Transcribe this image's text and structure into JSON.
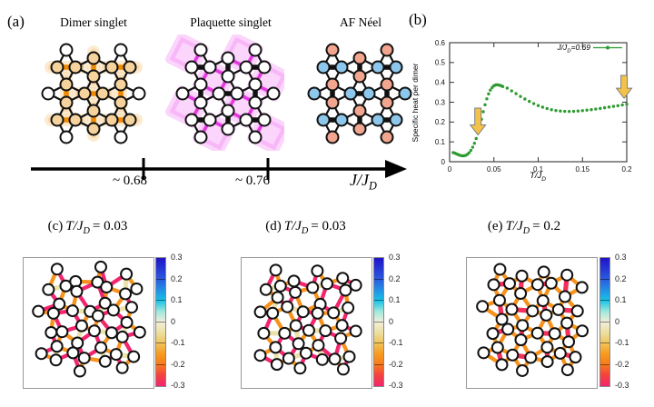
{
  "panel_a": {
    "label": "(a)",
    "phases": [
      {
        "name": "Dimer singlet"
      },
      {
        "name": "Plaquette singlet"
      },
      {
        "name": "AF Néel"
      }
    ],
    "axis": {
      "tick_labels": [
        "~ 0.68",
        "~ 0.76"
      ],
      "label_main": "J/J",
      "label_sub": "D"
    }
  },
  "panel_b": {
    "label": "(b)"
  },
  "chart_data": {
    "type": "scatter",
    "title": "",
    "ylabel": "Specific heat per dimer",
    "xlabel_main": "T/J",
    "xlabel_sub": "D",
    "xlim": [
      0,
      0.2
    ],
    "ylim": [
      0,
      0.6
    ],
    "xtick_labels": [
      "0",
      "0.05",
      "0.1",
      "0.15",
      "0.2"
    ],
    "ytick_labels": [
      "0",
      "0.1",
      "0.2",
      "0.3",
      "0.4",
      "0.5",
      "0.6"
    ],
    "grid": false,
    "legend": {
      "position": "top-right",
      "label_main": "J/J",
      "label_sub": "D",
      "label_eq": "=0.69"
    },
    "series_color": "#2e9b30",
    "x": [
      0.004,
      0.006,
      0.008,
      0.01,
      0.012,
      0.014,
      0.016,
      0.018,
      0.02,
      0.022,
      0.024,
      0.026,
      0.028,
      0.03,
      0.032,
      0.034,
      0.036,
      0.038,
      0.04,
      0.042,
      0.044,
      0.046,
      0.048,
      0.05,
      0.052,
      0.054,
      0.056,
      0.058,
      0.06,
      0.065,
      0.07,
      0.075,
      0.08,
      0.085,
      0.09,
      0.095,
      0.1,
      0.105,
      0.11,
      0.115,
      0.12,
      0.125,
      0.13,
      0.135,
      0.14,
      0.145,
      0.15,
      0.155,
      0.16,
      0.165,
      0.17,
      0.175,
      0.18,
      0.185,
      0.19,
      0.195,
      0.2
    ],
    "y": [
      0.046,
      0.043,
      0.039,
      0.035,
      0.032,
      0.03,
      0.03,
      0.032,
      0.037,
      0.045,
      0.057,
      0.073,
      0.093,
      0.117,
      0.145,
      0.178,
      0.214,
      0.252,
      0.287,
      0.317,
      0.342,
      0.361,
      0.374,
      0.383,
      0.387,
      0.388,
      0.386,
      0.383,
      0.379,
      0.371,
      0.357,
      0.343,
      0.329,
      0.316,
      0.304,
      0.293,
      0.283,
      0.275,
      0.268,
      0.262,
      0.258,
      0.2555,
      0.254,
      0.2535,
      0.254,
      0.2555,
      0.2575,
      0.26,
      0.2625,
      0.2655,
      0.2685,
      0.272,
      0.2755,
      0.279,
      0.2825,
      0.286,
      0.29
    ],
    "annotations": {
      "arrow_color": "#f3c24b",
      "arrow_stroke": "#7f7f7f",
      "arrows": [
        {
          "x": 0.032,
          "y_tail": 0.27,
          "y_tip": 0.135
        },
        {
          "x": 0.197,
          "y_tail": 0.435,
          "y_tip": 0.32
        }
      ]
    }
  },
  "lower_panels": [
    {
      "label": "(c)",
      "temp_main": "T/J",
      "temp_sub": "D",
      "temp_eq": "= 0.03",
      "bond_values": {
        "plaquette_strong": -0.3,
        "plaquette_weak": -0.16,
        "dimer": -0.04
      },
      "parity": 1,
      "seed": 7,
      "jitter": 4.4
    },
    {
      "label": "(d)",
      "temp_main": "T/J",
      "temp_sub": "D",
      "temp_eq": "= 0.03",
      "bond_values": {
        "plaquette_strong": -0.3,
        "plaquette_weak": -0.16,
        "dimer": -0.04
      },
      "parity": 0,
      "seed": 13,
      "jitter": 4.4
    },
    {
      "label": "(e)",
      "temp_main": "T/J",
      "temp_sub": "D",
      "temp_eq": "= 0.2",
      "bond_values": {
        "plaquette_strong": -0.16,
        "plaquette_weak": -0.16,
        "dimer": -0.28
      },
      "parity": 0,
      "seed": 5,
      "jitter": 3.2
    }
  ],
  "colorbar": {
    "vmax": 0.3,
    "vmin": -0.3,
    "ticks": [
      "0.3",
      "0.2",
      "0.1",
      "0",
      "-0.1",
      "-0.2",
      "-0.3"
    ],
    "stops": [
      [
        0.3,
        "#2012c8"
      ],
      [
        0.2,
        "#2b5ce0"
      ],
      [
        0.1,
        "#19c3e8"
      ],
      [
        0.05,
        "#9fe8dc"
      ],
      [
        0.0,
        "#f2efda"
      ],
      [
        -0.05,
        "#ebdf9f"
      ],
      [
        -0.1,
        "#f0c35a"
      ],
      [
        -0.15,
        "#f79a1d"
      ],
      [
        -0.2,
        "#f8791d"
      ],
      [
        -0.25,
        "#f4413f"
      ],
      [
        -0.3,
        "#f2256e"
      ]
    ]
  },
  "lattice_styles": {
    "dimer": {
      "node_fill": "#f6d39c",
      "stub_fill": "#ffffff",
      "dimer_color": "#f08a05",
      "glow_color": "#f9c87e",
      "j_color": "#111111"
    },
    "plaquette": {
      "node_fill": "#ffffff",
      "stub_fill": "#ffffff",
      "dimer_color": "#111111",
      "strong_color": "#e33ae0",
      "glow_color": "#f27bf2",
      "j_color": "#111111"
    },
    "neel": {
      "v_fill": "#f2a68f",
      "h_fill": "#8ec7ec",
      "dimer_color": "#111111",
      "j_color": "#111111"
    }
  }
}
